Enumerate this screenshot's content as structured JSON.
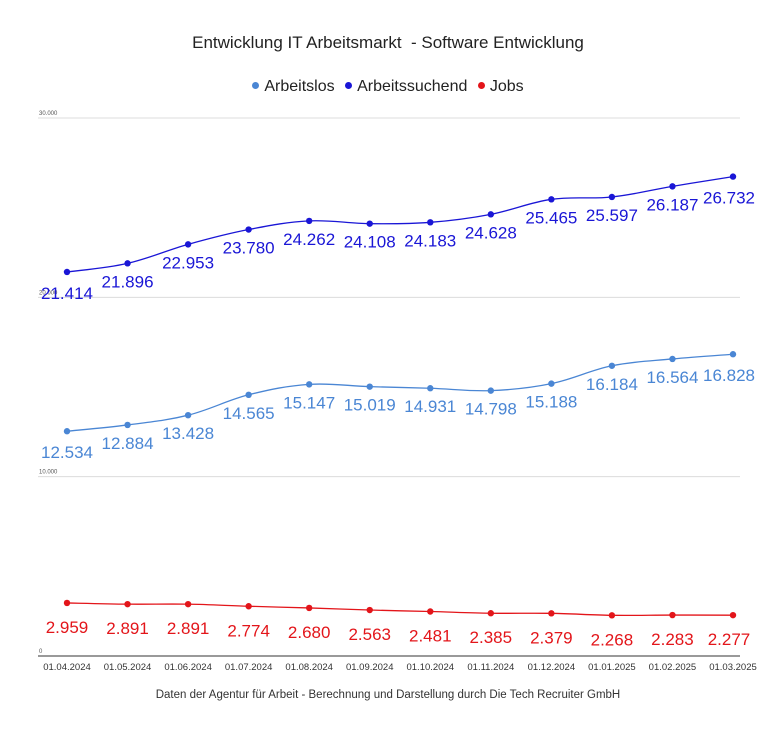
{
  "chart_data": {
    "type": "line",
    "title": "Entwicklung IT Arbeitsmarkt  - Software Entwicklung",
    "footer": "Daten der Agentur für Arbeit - Berechnung und Darstellung durch Die Tech Recruiter GmbH",
    "categories": [
      "01.04.2024",
      "01.05.2024",
      "01.06.2024",
      "01.07.2024",
      "01.08.2024",
      "01.09.2024",
      "01.10.2024",
      "01.11.2024",
      "01.12.2024",
      "01.01.2025",
      "01.02.2025",
      "01.03.2025"
    ],
    "ylim": [
      0,
      30000
    ],
    "yticks": [
      0,
      10000,
      20000,
      30000
    ],
    "ytick_labels": [
      "0",
      "10.000",
      "20.000",
      "30.000"
    ],
    "grid": true,
    "legend_position": "top",
    "series": [
      {
        "name": "Arbeitslos",
        "color": "#4a86d4",
        "values": [
          12534,
          12884,
          13428,
          14565,
          15147,
          15019,
          14931,
          14798,
          15188,
          16184,
          16564,
          16828
        ],
        "labels": [
          "12.534",
          "12.884",
          "13.428",
          "14.565",
          "15.147",
          "15.019",
          "14.931",
          "14.798",
          "15.188",
          "16.184",
          "16.564",
          "16.828"
        ]
      },
      {
        "name": "Arbeitssuchend",
        "color": "#1a16d6",
        "values": [
          21414,
          21896,
          22953,
          23780,
          24262,
          24108,
          24183,
          24628,
          25465,
          25597,
          26187,
          26732
        ],
        "labels": [
          "21.414",
          "21.896",
          "22.953",
          "23.780",
          "24.262",
          "24.108",
          "24.183",
          "24.628",
          "25.465",
          "25.597",
          "26.187",
          "26.732"
        ]
      },
      {
        "name": "Jobs",
        "color": "#e3151a",
        "values": [
          2959,
          2891,
          2891,
          2774,
          2680,
          2563,
          2481,
          2385,
          2379,
          2268,
          2283,
          2277
        ],
        "labels": [
          "2.959",
          "2.891",
          "2.891",
          "2.774",
          "2.680",
          "2.563",
          "2.481",
          "2.385",
          "2.379",
          "2.268",
          "2.283",
          "2.277"
        ]
      }
    ]
  }
}
